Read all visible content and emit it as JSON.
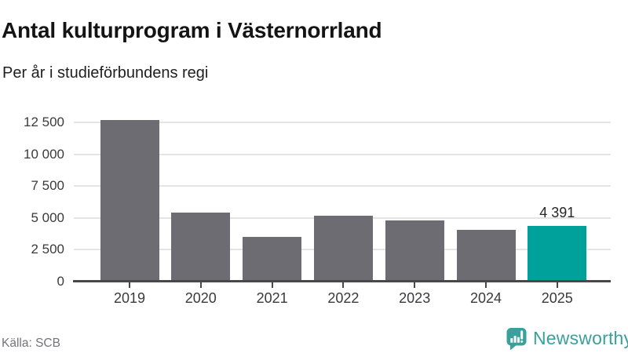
{
  "header": {
    "title": "Antal kulturprogram i Västernorrland",
    "subtitle": "Per år i studieförbundens regi"
  },
  "footer": {
    "source": "Källa: SCB",
    "brand": "Newsworthy"
  },
  "colors": {
    "bar": "#6d6c73",
    "highlight": "#00a19a",
    "gridline": "#e4e4e4",
    "axis_line": "#47474c",
    "axis_text": "#3a3a3e",
    "brand_teal": "#39a09c"
  },
  "chart_data": {
    "type": "bar",
    "title": "Antal kulturprogram i Västernorrland",
    "subtitle": "Per år i studieförbundens regi",
    "categories": [
      "2019",
      "2020",
      "2021",
      "2022",
      "2023",
      "2024",
      "2025"
    ],
    "values": [
      12700,
      5400,
      3500,
      5170,
      4800,
      4050,
      4391
    ],
    "highlight_index": 6,
    "highlight_label": "4 391",
    "xlabel": "",
    "ylabel": "",
    "ylim": [
      0,
      12900
    ],
    "grid": true,
    "legend": "none",
    "y_ticks": [
      {
        "value": 0,
        "label": "0"
      },
      {
        "value": 2500,
        "label": "2 500"
      },
      {
        "value": 5000,
        "label": "5 000"
      },
      {
        "value": 7500,
        "label": "7 500"
      },
      {
        "value": 10000,
        "label": "10 000"
      },
      {
        "value": 12500,
        "label": "12 500"
      }
    ]
  }
}
